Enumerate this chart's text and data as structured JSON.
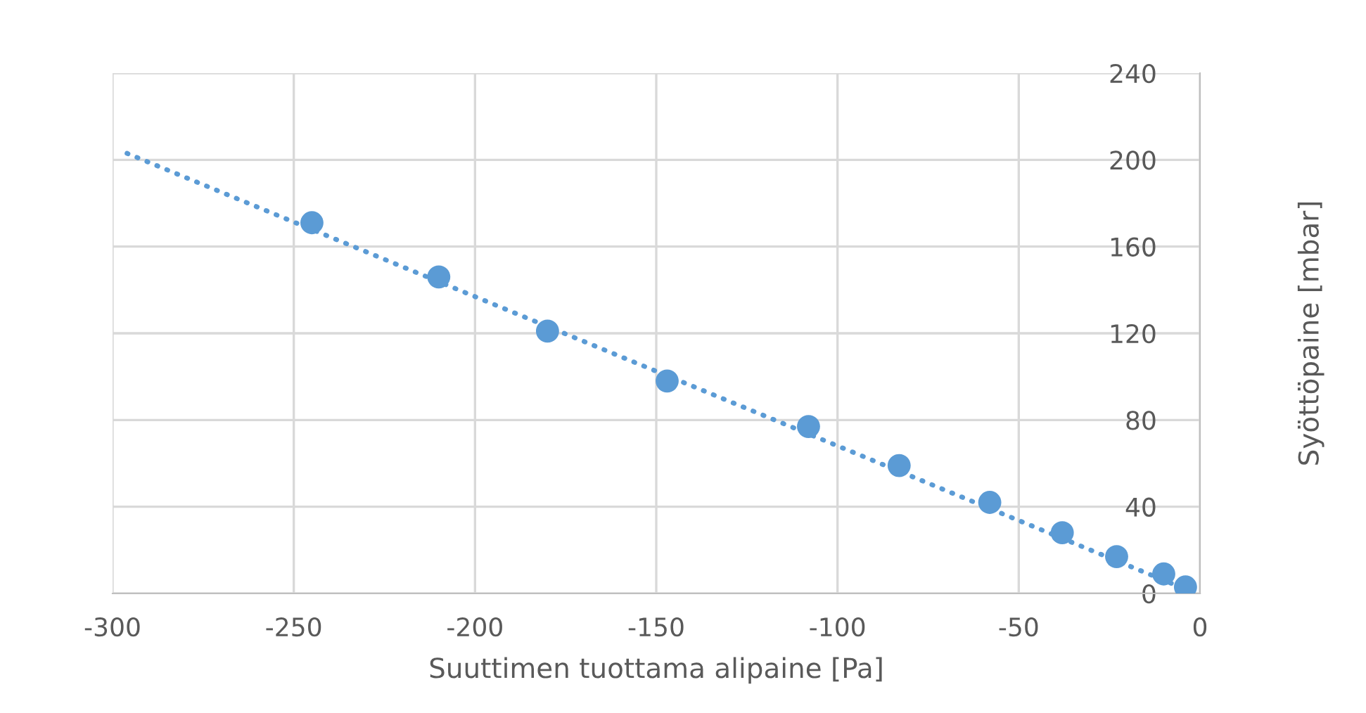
{
  "chart_data": {
    "type": "scatter",
    "xlabel": "Suuttimen tuottama alipaine [Pa]",
    "ylabel": "Syöttöpaine [mbar]",
    "x": [
      -245,
      -210,
      -180,
      -147,
      -108,
      -83,
      -58,
      -38,
      -23,
      -10,
      -4
    ],
    "series": [
      {
        "color": "#5b9bd5",
        "marker": "circle",
        "values": [
          171,
          146,
          121,
          98,
          77,
          59,
          42,
          28,
          17,
          9,
          3
        ]
      },
      {
        "type": "line",
        "color": "#5b9bd5",
        "line_style": "dotted",
        "marker": "none",
        "x": [
          -296,
          -4
        ],
        "values": [
          203,
          2
        ]
      }
    ],
    "xlim": [
      -300,
      0
    ],
    "xticks": [
      -300,
      -250,
      -200,
      -150,
      -100,
      -50,
      0
    ],
    "ylim": [
      0,
      240
    ],
    "yticks": [
      0,
      40,
      80,
      120,
      160,
      200,
      240
    ],
    "grid": true,
    "legend": false
  }
}
